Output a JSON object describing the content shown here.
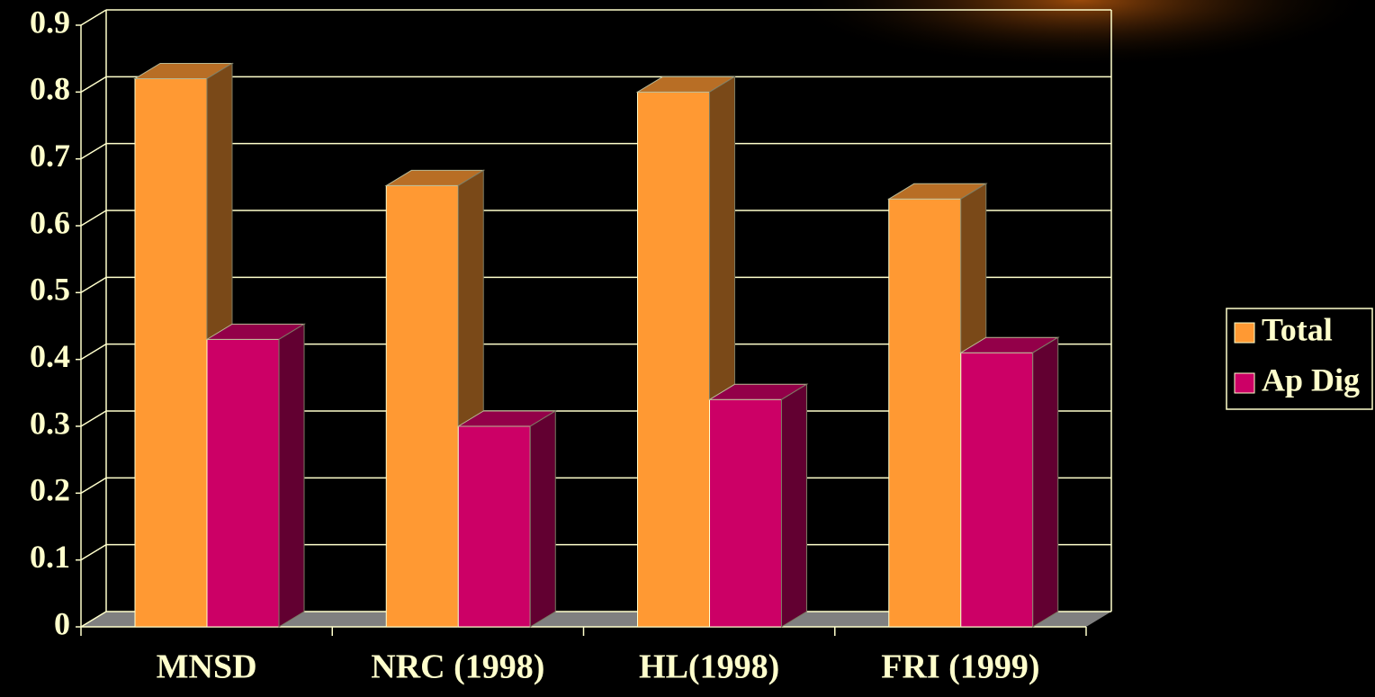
{
  "chart_data": {
    "type": "bar3d",
    "categories": [
      "MNSD",
      "NRC (1998)",
      "HL(1998)",
      "FRI (1999)"
    ],
    "series": [
      {
        "name": "Total",
        "color": "#ff9933",
        "values": [
          0.82,
          0.66,
          0.8,
          0.64
        ]
      },
      {
        "name": "Ap Dig",
        "color": "#cc0066",
        "values": [
          0.43,
          0.3,
          0.34,
          0.41
        ]
      }
    ],
    "ylim": [
      0,
      0.9
    ],
    "yticks": [
      0,
      0.1,
      0.2,
      0.3,
      0.4,
      0.5,
      0.6,
      0.7,
      0.8,
      0.9
    ],
    "grid": true,
    "legend": "right"
  }
}
